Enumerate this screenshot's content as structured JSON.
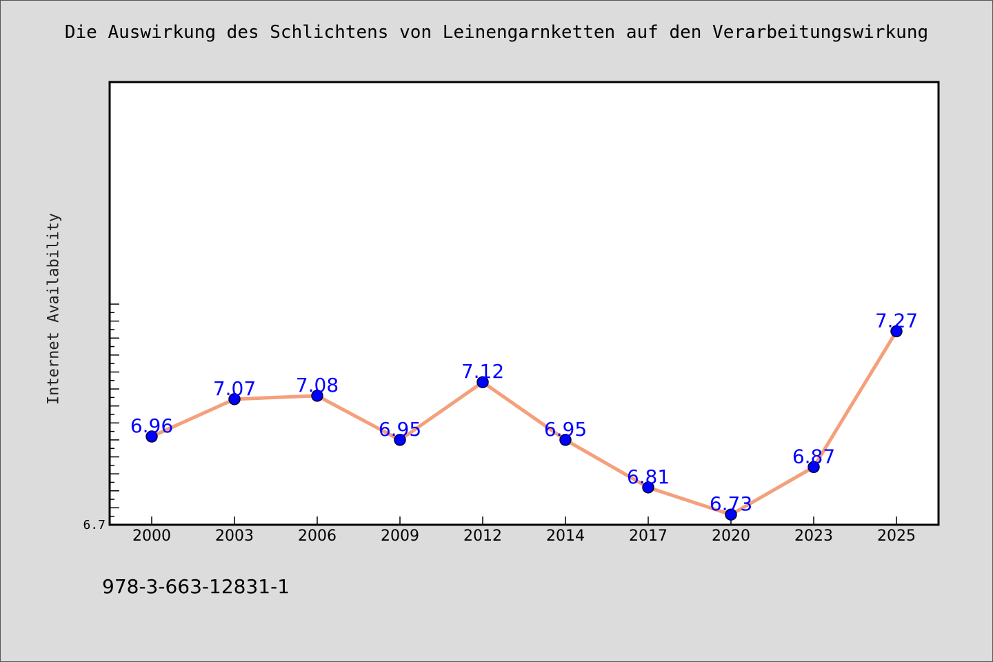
{
  "chart_data": {
    "type": "line",
    "title": "Die Auswirkung des Schlichtens von Leinengarnketten auf den Verarbeitungswirkung",
    "xlabel": "",
    "ylabel": "Internet Availability",
    "categories": [
      "2000",
      "2003",
      "2006",
      "2009",
      "2012",
      "2014",
      "2017",
      "2020",
      "2023",
      "2025"
    ],
    "series": [
      {
        "values": [
          6.96,
          7.07,
          7.08,
          6.95,
          7.12,
          6.95,
          6.81,
          6.73,
          6.87,
          7.27
        ],
        "data_labels": [
          "6.96",
          "7.07",
          "7.08",
          "6.95",
          "7.12",
          "6.95",
          "6.81",
          "6.73",
          "6.87",
          "7.27"
        ]
      }
    ],
    "ylim": [
      6.7,
      7.35
    ],
    "yticks_labeled": [
      "6.7"
    ],
    "grid": false,
    "legend": "none",
    "colors": {
      "line": "#f4a07c",
      "marker_fill": "#0000ff",
      "marker_edge": "#000033",
      "data_label": "#0000ff",
      "plot_background": "#ffffff",
      "page_background": "#dcdcdc"
    }
  },
  "footnote": "978-3-663-12831-1"
}
